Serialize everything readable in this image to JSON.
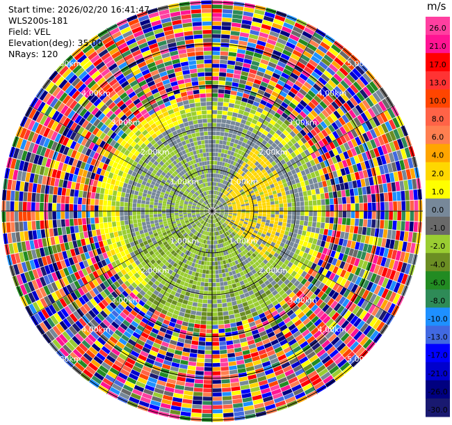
{
  "header": {
    "start_time": "Start time: 2026/02/20 16:41:47",
    "site": "WLS200s-181",
    "field": "Field: VEL",
    "elevation": "Elevation(deg): 35.00",
    "nrays": "NRays: 120"
  },
  "colorbar": {
    "unit": "m/s",
    "levels": [
      "26.0",
      "21.0",
      "17.0",
      "13.0",
      "10.0",
      "8.0",
      "6.0",
      "4.0",
      "2.0",
      "1.0",
      "0.0",
      "-1.0",
      "-2.0",
      "-4.0",
      "-6.0",
      "-8.0",
      "-10.0",
      "-13.0",
      "-17.0",
      "-21.0",
      "-26.0",
      "-30.0"
    ],
    "colors": [
      "#ff3fa0",
      "#ff1493",
      "#ff0000",
      "#ff3333",
      "#ff4500",
      "#ff6347",
      "#ff7f50",
      "#ffa500",
      "#ffd700",
      "#ffff00",
      "#778899",
      "#696969",
      "#9acd32",
      "#6b8e23",
      "#228b22",
      "#2e8b57",
      "#1e90ff",
      "#4169e1",
      "#0000ff",
      "#0000cd",
      "#000080",
      "#191970"
    ]
  },
  "chart_data": {
    "type": "heatmap",
    "projection": "polar PPI",
    "field": "VEL",
    "units": "m/s",
    "nrays": 120,
    "range_rings_km": [
      1.0,
      2.0,
      3.0,
      4.0,
      5.0
    ],
    "ring_labels": [
      "1.00km",
      "2.00km",
      "3.00km",
      "4.00km",
      "5.00km"
    ]
  }
}
